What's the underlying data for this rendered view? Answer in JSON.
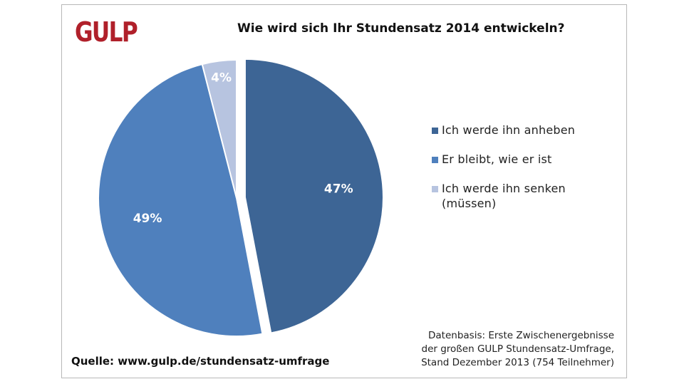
{
  "logo": "GULP",
  "chart_data": {
    "type": "pie",
    "title": "Wie wird sich Ihr Stundensatz  2014  entwickeln?",
    "slices": [
      {
        "label": "Ich werde ihn  anheben",
        "value": 47,
        "display": "47%",
        "color": "#3d6595"
      },
      {
        "label": "Er bleibt,  wie er ist",
        "value": 49,
        "display": "49%",
        "color": "#4f80bd"
      },
      {
        "label": "Ich werde ihn  senken (müssen)",
        "value": 4,
        "display": "4%",
        "color": "#b7c4e0"
      }
    ],
    "legend_position": "right",
    "exploded_slice": "Ich werde ihn  anheben"
  },
  "source": "Quelle: www.gulp.de/stundensatz-umfrage",
  "note": [
    "Datenbasis: Erste Zwischenergebnisse",
    "der großen GULP Stundensatz-Umfrage,",
    "Stand Dezember 2013 (754 Teilnehmer)"
  ]
}
